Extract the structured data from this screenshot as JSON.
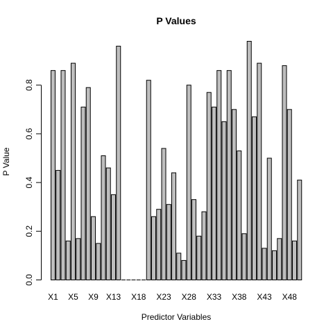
{
  "chart_data": {
    "type": "bar",
    "title": "P Values",
    "xlabel": "Predictor Variables",
    "ylabel": "P Value",
    "ylim": [
      0,
      1
    ],
    "yticks": [
      "0.0",
      "0.2",
      "0.4",
      "0.6",
      "0.8"
    ],
    "ytick_values": [
      0,
      0.2,
      0.4,
      0.6,
      0.8
    ],
    "categories": [
      "X1",
      "X2",
      "X3",
      "X4",
      "X5",
      "X6",
      "X7",
      "X8",
      "X9",
      "X10",
      "X11",
      "X12",
      "X13",
      "X14",
      "X15",
      "X16",
      "X17",
      "X18",
      "X19",
      "X20",
      "X21",
      "X22",
      "X23",
      "X24",
      "X25",
      "X26",
      "X27",
      "X28",
      "X29",
      "X30",
      "X31",
      "X32",
      "X33",
      "X34",
      "X35",
      "X36",
      "X37",
      "X38",
      "X39",
      "X40",
      "X41",
      "X42",
      "X43",
      "X44",
      "X45",
      "X46",
      "X47",
      "X48",
      "X49",
      "X50"
    ],
    "category_labels_shown": [
      "X1",
      "X5",
      "X9",
      "X13",
      "X18",
      "X23",
      "X28",
      "X33",
      "X38",
      "X43",
      "X48"
    ],
    "values": [
      0.86,
      0.45,
      0.86,
      0.16,
      0.89,
      0.17,
      0.71,
      0.79,
      0.26,
      0.15,
      0.51,
      0.46,
      0.35,
      0.96,
      0,
      0,
      0,
      0,
      0,
      0.82,
      0.26,
      0.29,
      0.54,
      0.31,
      0.44,
      0.11,
      0.08,
      0.8,
      0.33,
      0.18,
      0.28,
      0.77,
      0.71,
      0.86,
      0.65,
      0.86,
      0.7,
      0.53,
      0.19,
      0.98,
      0.67,
      0.89,
      0.13,
      0.5,
      0.12,
      0.17,
      0.88,
      0.7,
      0.16,
      0.41
    ],
    "grid": false,
    "legend": "none",
    "colors": {
      "bar_fill": "#bebebe",
      "bar_stroke": "#000000"
    }
  }
}
